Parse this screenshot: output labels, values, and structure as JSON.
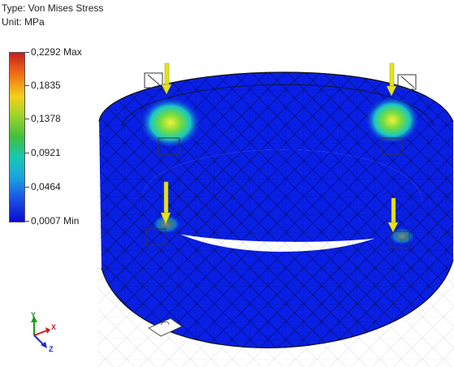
{
  "result": {
    "type_line": "Type: Von Mises Stress",
    "unit_line": "Unit: MPa"
  },
  "legend": {
    "labels": [
      "0,2292 Max",
      "0,1835",
      "0,1378",
      "0,0921",
      "0,0464",
      "0,0007 Min"
    ],
    "colors": [
      "#c81e1e",
      "#f3d11c",
      "#3fbf3f",
      "#17c8b4",
      "#1aa3e0",
      "#0a0ad2"
    ]
  },
  "triad": {
    "y": "Y",
    "x": "X",
    "z": "Z"
  },
  "model": {
    "mesh_color": "#0a1fe6",
    "load_arrow_color": "#e6e21a",
    "edge_color": "#111111"
  }
}
